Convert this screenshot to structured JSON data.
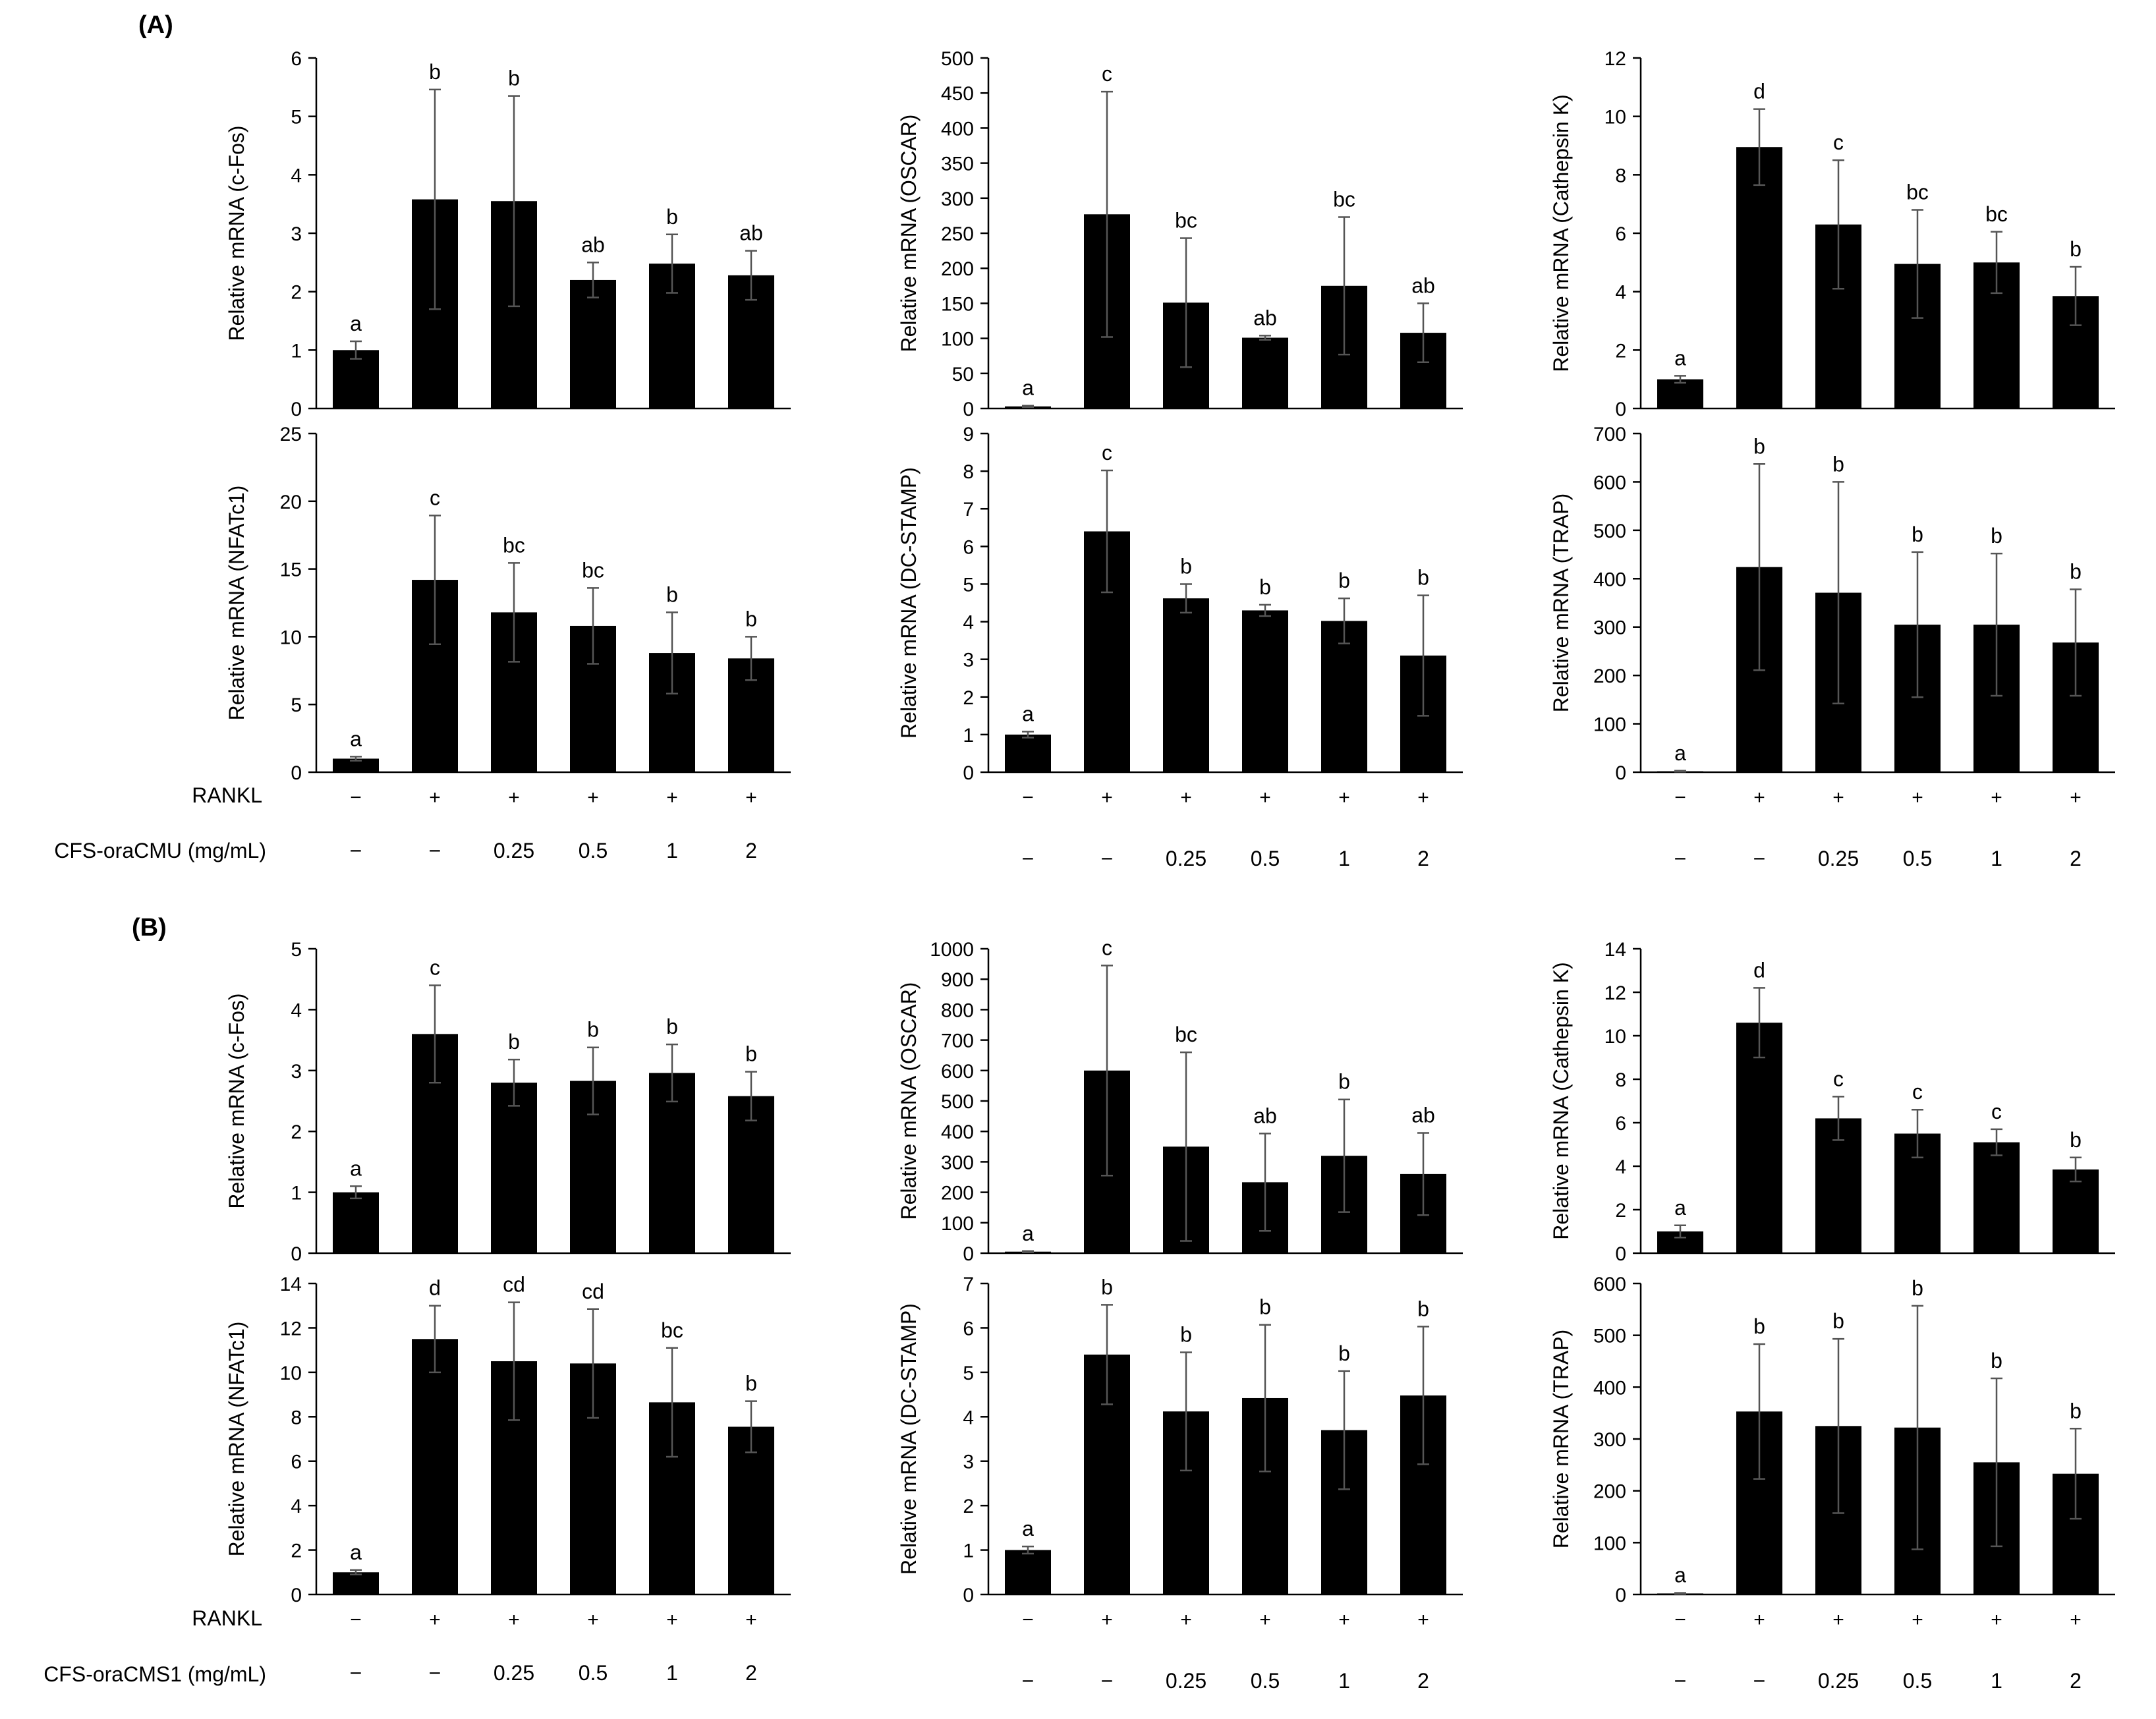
{
  "panels": [
    {
      "label": "(A)",
      "rankl_label": "RANKL",
      "treatment_label": "CFS-oraCMU (mg/mL)"
    },
    {
      "label": "(B)",
      "rankl_label": "RANKL",
      "treatment_label": "CFS-oraCMS1 (mg/mL)"
    }
  ],
  "rankl_signs": [
    "−",
    "+",
    "+",
    "+",
    "+",
    "+"
  ],
  "dose_labels": [
    "−",
    "−",
    "0.25",
    "0.5",
    "1",
    "2"
  ],
  "colors": {
    "bar": "#000000",
    "error_bar": "#555555",
    "axis": "#000000"
  },
  "chart_data": [
    {
      "type": "bar",
      "panel": "A",
      "ylabel": "Relative mRNA (c-Fos)",
      "ylim": [
        0,
        6
      ],
      "yticks": [
        0,
        1,
        2,
        3,
        4,
        5,
        6
      ],
      "values": [
        1.0,
        3.58,
        3.55,
        2.2,
        2.48,
        2.28
      ],
      "errors": [
        0.15,
        1.88,
        1.8,
        0.3,
        0.5,
        0.42
      ],
      "letters": [
        "a",
        "b",
        "b",
        "ab",
        "b",
        "ab"
      ]
    },
    {
      "type": "bar",
      "panel": "A",
      "ylabel": "Relative mRNA (OSCAR)",
      "ylim": [
        0,
        500
      ],
      "yticks": [
        0,
        50,
        100,
        150,
        200,
        250,
        300,
        350,
        400,
        450,
        500
      ],
      "values": [
        3,
        277,
        151,
        101,
        175,
        108
      ],
      "errors": [
        1,
        175,
        92,
        3,
        98,
        42
      ],
      "letters": [
        "a",
        "c",
        "bc",
        "ab",
        "bc",
        "ab"
      ]
    },
    {
      "type": "bar",
      "panel": "A",
      "ylabel": "Relative mRNA (Cathepsin K)",
      "ylim": [
        0,
        12
      ],
      "yticks": [
        0,
        2,
        4,
        6,
        8,
        10,
        12
      ],
      "values": [
        1.0,
        8.95,
        6.3,
        4.95,
        5.0,
        3.85
      ],
      "errors": [
        0.12,
        1.3,
        2.2,
        1.85,
        1.05,
        1.0
      ],
      "letters": [
        "a",
        "d",
        "c",
        "bc",
        "bc",
        "b"
      ]
    },
    {
      "type": "bar",
      "panel": "A",
      "ylabel": "Relative mRNA (NFATc1)",
      "ylim": [
        0,
        25
      ],
      "yticks": [
        0,
        5,
        10,
        15,
        20,
        25
      ],
      "values": [
        1.0,
        14.2,
        11.8,
        10.8,
        8.8,
        8.4
      ],
      "errors": [
        0.15,
        4.75,
        3.65,
        2.8,
        3.0,
        1.6
      ],
      "letters": [
        "a",
        "c",
        "bc",
        "bc",
        "b",
        "b"
      ]
    },
    {
      "type": "bar",
      "panel": "A",
      "ylabel": "Relative mRNA (DC-STAMP)",
      "ylim": [
        0,
        9
      ],
      "yticks": [
        0,
        1,
        2,
        3,
        4,
        5,
        6,
        7,
        8,
        9
      ],
      "values": [
        1.0,
        6.4,
        4.62,
        4.3,
        4.02,
        3.1
      ],
      "errors": [
        0.08,
        1.62,
        0.38,
        0.15,
        0.6,
        1.6
      ],
      "letters": [
        "a",
        "c",
        "b",
        "b",
        "b",
        "b"
      ]
    },
    {
      "type": "bar",
      "panel": "A",
      "ylabel": "Relative mRNA (TRAP)",
      "ylim": [
        0,
        700
      ],
      "yticks": [
        0,
        100,
        200,
        300,
        400,
        500,
        600,
        700
      ],
      "values": [
        2,
        424,
        371,
        305,
        305,
        268
      ],
      "errors": [
        1,
        213,
        229,
        150,
        147,
        110
      ],
      "letters": [
        "a",
        "b",
        "b",
        "b",
        "b",
        "b"
      ]
    },
    {
      "type": "bar",
      "panel": "B",
      "ylabel": "Relative mRNA (c-Fos)",
      "ylim": [
        0,
        5
      ],
      "yticks": [
        0,
        1,
        2,
        3,
        4,
        5
      ],
      "values": [
        1.0,
        3.6,
        2.8,
        2.83,
        2.96,
        2.58
      ],
      "errors": [
        0.1,
        0.8,
        0.38,
        0.55,
        0.47,
        0.4
      ],
      "letters": [
        "a",
        "c",
        "b",
        "b",
        "b",
        "b"
      ]
    },
    {
      "type": "bar",
      "panel": "B",
      "ylabel": "Relative mRNA (OSCAR)",
      "ylim": [
        0,
        1000
      ],
      "yticks": [
        0,
        100,
        200,
        300,
        400,
        500,
        600,
        700,
        800,
        900,
        1000
      ],
      "values": [
        5,
        600,
        350,
        233,
        320,
        260
      ],
      "errors": [
        2,
        345,
        310,
        160,
        185,
        135
      ],
      "letters": [
        "a",
        "c",
        "bc",
        "ab",
        "b",
        "ab"
      ]
    },
    {
      "type": "bar",
      "panel": "B",
      "ylabel": "Relative mRNA (Cathepsin K)",
      "ylim": [
        0,
        14
      ],
      "yticks": [
        0,
        2,
        4,
        6,
        8,
        10,
        12,
        14
      ],
      "values": [
        1.0,
        10.6,
        6.2,
        5.5,
        5.1,
        3.85
      ],
      "errors": [
        0.28,
        1.6,
        1.0,
        1.1,
        0.6,
        0.55
      ],
      "letters": [
        "a",
        "d",
        "c",
        "c",
        "c",
        "b"
      ]
    },
    {
      "type": "bar",
      "panel": "B",
      "ylabel": "Relative mRNA (NFATc1)",
      "ylim": [
        0,
        14
      ],
      "yticks": [
        0,
        2,
        4,
        6,
        8,
        10,
        12,
        14
      ],
      "values": [
        1.0,
        11.5,
        10.5,
        10.4,
        8.65,
        7.55
      ],
      "errors": [
        0.1,
        1.5,
        2.65,
        2.45,
        2.45,
        1.15
      ],
      "letters": [
        "a",
        "d",
        "cd",
        "cd",
        "bc",
        "b"
      ]
    },
    {
      "type": "bar",
      "panel": "B",
      "ylabel": "Relative mRNA (DC-STAMP)",
      "ylim": [
        0,
        7
      ],
      "yticks": [
        0,
        1,
        2,
        3,
        4,
        5,
        6,
        7
      ],
      "values": [
        1.0,
        5.4,
        4.12,
        4.42,
        3.7,
        4.48
      ],
      "errors": [
        0.08,
        1.12,
        1.33,
        1.65,
        1.33,
        1.55
      ],
      "letters": [
        "a",
        "b",
        "b",
        "b",
        "b",
        "b"
      ]
    },
    {
      "type": "bar",
      "panel": "B",
      "ylabel": "Relative mRNA (TRAP)",
      "ylim": [
        0,
        600
      ],
      "yticks": [
        0,
        100,
        200,
        300,
        400,
        500,
        600
      ],
      "values": [
        2,
        353,
        325,
        322,
        255,
        233
      ],
      "errors": [
        1,
        130,
        168,
        235,
        162,
        87
      ],
      "letters": [
        "a",
        "b",
        "b",
        "b",
        "b",
        "b"
      ]
    }
  ]
}
